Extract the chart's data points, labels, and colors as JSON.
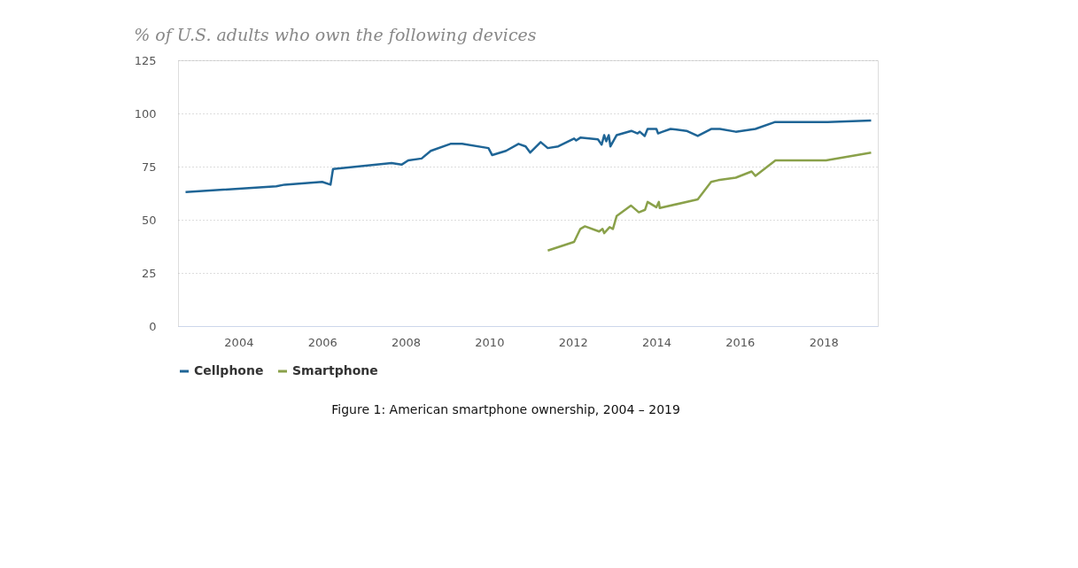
{
  "chart_data": {
    "type": "line",
    "title": "% of U.S. adults who own the following devices",
    "xlim": [
      2002.55,
      2019.3
    ],
    "xticks": [
      2004,
      2006,
      2008,
      2010,
      2012,
      2014,
      2016,
      2018
    ],
    "ylim": [
      0,
      125
    ],
    "yticks": [
      0,
      25,
      50,
      75,
      100,
      125
    ],
    "grid": "y",
    "legend": "bottom",
    "annotations": [
      "Figure 1: American smartphone ownership, 2004 – 2019"
    ],
    "series": [
      {
        "name": "Cellphone",
        "color": "#1f6596",
        "x": [
          2002.73,
          2004.9,
          2005.1,
          2006.0,
          2006.2,
          2006.26,
          2007.66,
          2007.9,
          2008.06,
          2008.38,
          2008.6,
          2009.07,
          2009.35,
          2009.98,
          2010.07,
          2010.4,
          2010.7,
          2010.87,
          2010.98,
          2011.23,
          2011.4,
          2011.65,
          2012.03,
          2012.08,
          2012.18,
          2012.6,
          2012.69,
          2012.75,
          2012.8,
          2012.86,
          2012.9,
          2013.05,
          2013.4,
          2013.55,
          2013.6,
          2013.72,
          2013.79,
          2014.0,
          2014.04,
          2014.15,
          2014.34,
          2014.72,
          2014.99,
          2015.31,
          2015.52,
          2015.9,
          2016.37,
          2016.83,
          2018.1,
          2019.14
        ],
        "values": [
          63,
          65.7,
          66.5,
          67.8,
          66.5,
          73.9,
          76.7,
          75.9,
          77.9,
          78.8,
          82.4,
          85.7,
          85.7,
          83.7,
          80.4,
          82.4,
          85.7,
          84.5,
          81.6,
          86.5,
          83.7,
          84.5,
          88.2,
          87.3,
          88.6,
          87.8,
          85.3,
          89.8,
          86.9,
          89.8,
          84.5,
          89.8,
          91.8,
          90.6,
          91.4,
          89.4,
          92.7,
          92.7,
          90.6,
          91.4,
          92.7,
          91.8,
          89.4,
          92.7,
          92.7,
          91.4,
          92.7,
          95.9,
          95.9,
          96.7
        ]
      },
      {
        "name": "Smartphone",
        "color": "#8aa14a",
        "x": [
          2011.4,
          2012.03,
          2012.18,
          2012.29,
          2012.63,
          2012.71,
          2012.75,
          2012.88,
          2012.96,
          2013.05,
          2013.39,
          2013.58,
          2013.73,
          2013.79,
          2014.0,
          2014.06,
          2014.08,
          2014.99,
          2015.31,
          2015.48,
          2015.9,
          2016.28,
          2016.37,
          2016.85,
          2018.06,
          2019.14
        ],
        "values": [
          35.5,
          39.6,
          45.7,
          46.9,
          44.5,
          45.7,
          43.7,
          46.5,
          45.7,
          51.8,
          56.7,
          53.5,
          54.7,
          58.4,
          55.9,
          58.4,
          55.5,
          59.6,
          67.8,
          68.6,
          69.8,
          72.7,
          70.6,
          77.9,
          77.9,
          81.6
        ]
      }
    ]
  }
}
